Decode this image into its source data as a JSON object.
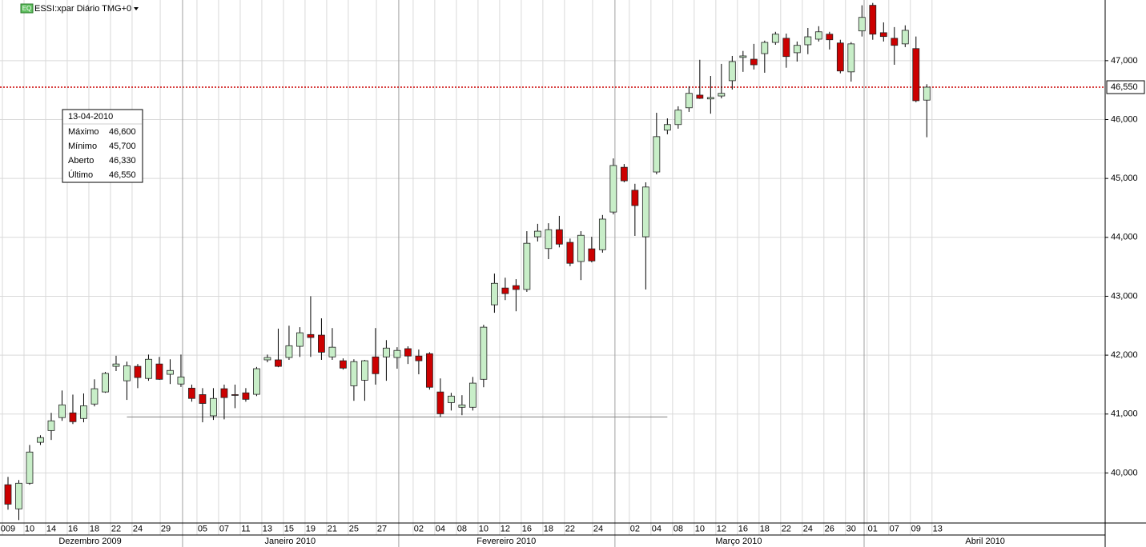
{
  "header": {
    "icon": "EQ",
    "title": "ESSI:xpar Diário TMG+0"
  },
  "tooltip": {
    "date": "13-04-2010",
    "rows": [
      [
        "Máximo",
        "46,600"
      ],
      [
        "Mínimo",
        "45,700"
      ],
      [
        "Aberto",
        "46,330"
      ],
      [
        "Último",
        "46,550"
      ]
    ]
  },
  "chart_data": {
    "type": "candlestick",
    "up_color": "#c8eec8",
    "down_color": "#cc0000",
    "grid": true,
    "open": [
      39800,
      39390,
      39825,
      40520,
      40720,
      40940,
      41020,
      40925,
      41170,
      41375,
      41810,
      41565,
      41810,
      41605,
      41850,
      41675,
      41510,
      41440,
      41330,
      40970,
      41430,
      41330,
      41360,
      41335,
      41920,
      41920,
      41960,
      42150,
      42350,
      42340,
      41970,
      41905,
      41480,
      41575,
      41970,
      41970,
      41960,
      42110,
      41985,
      42025,
      41375,
      41195,
      41115,
      41115,
      41590,
      42855,
      43140,
      43180,
      43115,
      44010,
      43810,
      44130,
      43915,
      43590,
      43805,
      43790,
      44430,
      45190,
      44800,
      44010,
      45110,
      45820,
      45915,
      46200,
      46415,
      46350,
      46400,
      46660,
      47055,
      47025,
      47120,
      47310,
      47380,
      47135,
      47270,
      47365,
      47450,
      47300,
      46810,
      47505,
      47940,
      47475,
      47380,
      47285,
      47205,
      46330
    ],
    "high": [
      39933,
      39880,
      40475,
      40640,
      41020,
      41400,
      41330,
      41350,
      41590,
      41715,
      41990,
      41890,
      41850,
      42010,
      41970,
      41930,
      42010,
      41500,
      41440,
      41440,
      41500,
      41500,
      41440,
      41800,
      42010,
      42450,
      42500,
      42475,
      43000,
      42625,
      42460,
      41945,
      41930,
      41920,
      42460,
      42255,
      42135,
      42150,
      42095,
      42050,
      41605,
      41360,
      41320,
      41630,
      42515,
      43385,
      43315,
      43290,
      44105,
      44230,
      44240,
      44365,
      43980,
      44105,
      44010,
      44380,
      45340,
      45245,
      44910,
      44935,
      46115,
      46020,
      46225,
      46565,
      47015,
      46740,
      46945,
      47080,
      47165,
      47285,
      47340,
      47490,
      47460,
      47325,
      47555,
      47585,
      47490,
      47355,
      47315,
      47940,
      47980,
      47650,
      47570,
      47600,
      47410,
      46600
    ],
    "low": [
      39376,
      39200,
      39800,
      40475,
      40560,
      40885,
      40830,
      40860,
      41130,
      41360,
      41730,
      41240,
      41440,
      41565,
      41580,
      41510,
      41460,
      41210,
      40860,
      40900,
      40910,
      41100,
      41210,
      41305,
      41880,
      41795,
      41920,
      41970,
      41970,
      41920,
      41920,
      41755,
      41225,
      41225,
      41500,
      41565,
      41770,
      41850,
      41675,
      41415,
      40950,
      41060,
      40980,
      41060,
      41455,
      42720,
      42935,
      42745,
      43075,
      43930,
      43630,
      43830,
      43510,
      43275,
      43575,
      43740,
      44390,
      44935,
      44025,
      43115,
      45070,
      45750,
      45845,
      46130,
      46350,
      46100,
      46360,
      46510,
      46810,
      46850,
      46795,
      47270,
      46880,
      46985,
      47110,
      47325,
      47190,
      46785,
      46645,
      47410,
      47355,
      47325,
      46930,
      47230,
      46295,
      45700
    ],
    "close": [
      39470,
      39825,
      40355,
      40600,
      40885,
      41156,
      40870,
      41140,
      41430,
      41690,
      41850,
      41820,
      41620,
      41930,
      41590,
      41740,
      41630,
      41265,
      41180,
      41265,
      41280,
      41320,
      41250,
      41770,
      41960,
      41810,
      42160,
      42380,
      42300,
      42050,
      42135,
      41780,
      41890,
      41905,
      41685,
      42120,
      42080,
      41985,
      41905,
      41455,
      41005,
      41305,
      41155,
      41525,
      42475,
      43220,
      43045,
      43115,
      43900,
      44105,
      44130,
      43885,
      43560,
      44035,
      43600,
      44310,
      45220,
      44960,
      44540,
      44855,
      45710,
      45915,
      46160,
      46445,
      46360,
      46375,
      46445,
      46985,
      47080,
      46930,
      47310,
      47450,
      47070,
      47260,
      47405,
      47490,
      47355,
      46825,
      47285,
      47735,
      47450,
      47410,
      47260,
      47515,
      46320,
      46550
    ],
    "xlim": [
      -0.74,
      101.5
    ],
    "ylim": [
      39150,
      48030
    ],
    "yticks": [
      {
        "value": 40000,
        "label": "40,000"
      },
      {
        "value": 41000,
        "label": "41,000"
      },
      {
        "value": 42000,
        "label": "42,000"
      },
      {
        "value": 43000,
        "label": "43,000"
      },
      {
        "value": 44000,
        "label": "44,000"
      },
      {
        "value": 45000,
        "label": "45,000"
      },
      {
        "value": 46000,
        "label": "46,000"
      },
      {
        "value": 47000,
        "label": "47,000"
      }
    ],
    "xticks": [
      {
        "value": 0,
        "label": "009"
      },
      {
        "value": 2,
        "label": "10"
      },
      {
        "value": 4,
        "label": "14"
      },
      {
        "value": 6,
        "label": "16"
      },
      {
        "value": 8,
        "label": "18"
      },
      {
        "value": 10,
        "label": "22"
      },
      {
        "value": 12,
        "label": "24"
      },
      {
        "value": 14.6,
        "label": "29"
      },
      {
        "value": 18,
        "label": "05"
      },
      {
        "value": 20,
        "label": "07"
      },
      {
        "value": 22,
        "label": "11"
      },
      {
        "value": 24,
        "label": "13"
      },
      {
        "value": 26,
        "label": "15"
      },
      {
        "value": 28,
        "label": "19"
      },
      {
        "value": 30,
        "label": "21"
      },
      {
        "value": 32,
        "label": "25"
      },
      {
        "value": 34.6,
        "label": "27"
      },
      {
        "value": 38,
        "label": "02"
      },
      {
        "value": 40,
        "label": "04"
      },
      {
        "value": 42,
        "label": "08"
      },
      {
        "value": 44,
        "label": "10"
      },
      {
        "value": 46,
        "label": "12"
      },
      {
        "value": 48,
        "label": "16"
      },
      {
        "value": 50,
        "label": "18"
      },
      {
        "value": 52,
        "label": "22"
      },
      {
        "value": 54.6,
        "label": "24"
      },
      {
        "value": 58,
        "label": "02"
      },
      {
        "value": 60,
        "label": "04"
      },
      {
        "value": 62,
        "label": "08"
      },
      {
        "value": 64,
        "label": "10"
      },
      {
        "value": 66,
        "label": "12"
      },
      {
        "value": 68,
        "label": "16"
      },
      {
        "value": 70,
        "label": "18"
      },
      {
        "value": 72,
        "label": "22"
      },
      {
        "value": 74,
        "label": "24"
      },
      {
        "value": 76,
        "label": "26"
      },
      {
        "value": 78,
        "label": "30"
      },
      {
        "value": 80,
        "label": "01"
      },
      {
        "value": 82,
        "label": "07"
      },
      {
        "value": 84,
        "label": "09"
      },
      {
        "value": 86,
        "label": "13"
      }
    ],
    "months": [
      {
        "value": 7.6,
        "label": "Dezembro 2009"
      },
      {
        "value": 26.1,
        "label": "Janeiro 2010"
      },
      {
        "value": 46.1,
        "label": "Fevereiro 2010"
      },
      {
        "value": 67.6,
        "label": "Março 2010"
      },
      {
        "value": 90.4,
        "label": "Abril 2010"
      }
    ],
    "month_breaks": [
      16.15,
      36.15,
      56.15,
      79.2
    ],
    "support_line": {
      "value": 40950,
      "from": 11,
      "to": 61
    },
    "last_price": {
      "value": 46550,
      "label": "46,550",
      "color": "#cc0000"
    }
  }
}
